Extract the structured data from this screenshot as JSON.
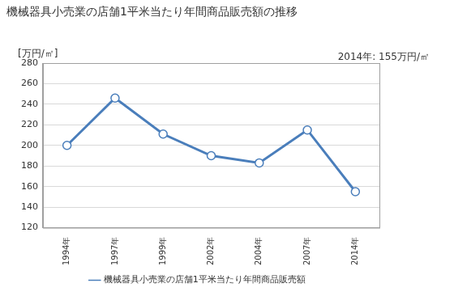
{
  "chart_data": {
    "type": "line",
    "title": "機械器具小売業の店舗1平米当たり年間商品販売額の推移",
    "y_label": "[万円/㎡]",
    "annotation": "2014年: 155万円/㎡",
    "categories": [
      "1994年",
      "1997年",
      "1999年",
      "2002年",
      "2004年",
      "2007年",
      "2014年"
    ],
    "series": [
      {
        "name": "機械器具小売業の店舗1平米当たり年間商品販売額",
        "color": "#4a7ebb",
        "marker": "circle",
        "values": [
          200,
          246,
          211,
          190,
          183,
          215,
          155
        ]
      }
    ],
    "ylim": [
      120,
      280
    ],
    "yticks": [
      120,
      140,
      160,
      180,
      200,
      220,
      240,
      260,
      280
    ],
    "grid": true,
    "legend": "bottom"
  }
}
